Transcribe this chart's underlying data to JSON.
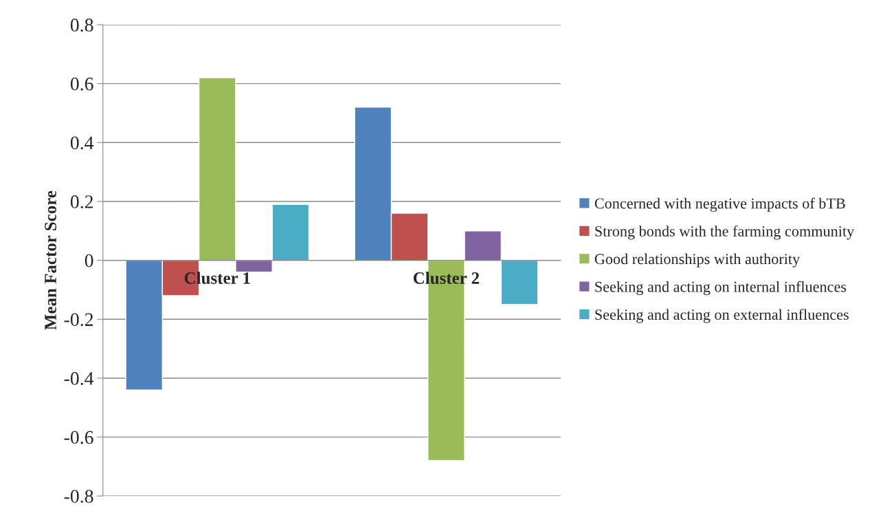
{
  "chart_data": {
    "type": "bar",
    "ylabel": "Mean Factor Score",
    "categories": [
      "Cluster 1",
      "Cluster 2"
    ],
    "series": [
      {
        "name": "Concerned with negative impacts of bTB",
        "color": "#4f81bd",
        "values": [
          -0.44,
          0.52
        ]
      },
      {
        "name": "Strong bonds with the farming community",
        "color": "#c0504d",
        "values": [
          -0.12,
          0.16
        ]
      },
      {
        "name": "Good relationships with authority",
        "color": "#9bbb59",
        "values": [
          0.62,
          -0.68
        ]
      },
      {
        "name": "Seeking and acting on internal influences",
        "color": "#8064a2",
        "values": [
          -0.04,
          0.1
        ]
      },
      {
        "name": "Seeking and acting on external influences",
        "color": "#4bacc6",
        "values": [
          0.19,
          -0.15
        ]
      }
    ],
    "ylim": [
      -0.8,
      0.8
    ],
    "yticks": [
      -0.8,
      -0.6,
      -0.4,
      -0.2,
      0,
      0.2,
      0.4,
      0.6,
      0.8
    ],
    "grid": "y",
    "legend": "right"
  }
}
